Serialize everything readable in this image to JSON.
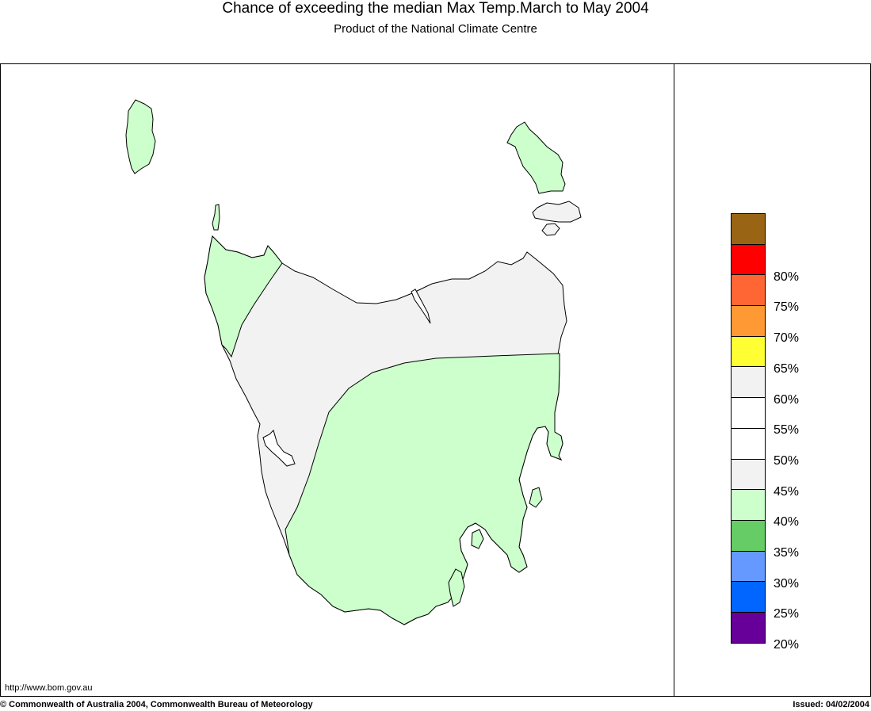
{
  "header": {
    "title": "Chance of exceeding the median Max Temp.March to May 2004",
    "subtitle": "Product of the National Climate Centre"
  },
  "legend": {
    "items": [
      {
        "color": "#996515",
        "label": ""
      },
      {
        "color": "#ff0000",
        "label": "80%"
      },
      {
        "color": "#ff6633",
        "label": "75%"
      },
      {
        "color": "#ff9933",
        "label": "70%"
      },
      {
        "color": "#ffff33",
        "label": "65%"
      },
      {
        "color": "#f2f2f2",
        "label": "60%"
      },
      {
        "color": "#ffffff",
        "label": "55%"
      },
      {
        "color": "#ffffff",
        "label": "50%"
      },
      {
        "color": "#f2f2f2",
        "label": "45%"
      },
      {
        "color": "#ccffcc",
        "label": "40%"
      },
      {
        "color": "#66cc66",
        "label": "35%"
      },
      {
        "color": "#6699ff",
        "label": "30%"
      },
      {
        "color": "#0066ff",
        "label": "25%"
      },
      {
        "color": "#660099",
        "label": "20%"
      }
    ]
  },
  "map": {
    "colors": {
      "green_zone": "#ccffcc",
      "grey_zone": "#f2f2f2",
      "outline": "#000000"
    }
  },
  "footer": {
    "url": "http://www.bom.gov.au",
    "copyright": "© Commonwealth of Australia 2004, Commonwealth Bureau of Meteorology",
    "issued": "Issued: 04/02/2004"
  }
}
